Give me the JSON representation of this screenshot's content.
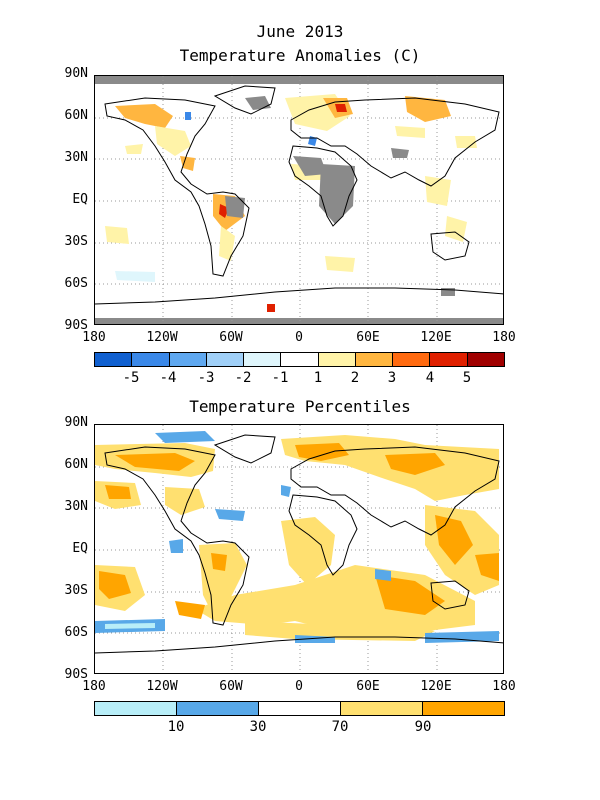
{
  "title": "June 2013",
  "panels": [
    {
      "title": "Temperature Anomalies (C)",
      "lat_labels": [
        "90N",
        "60N",
        "30N",
        "EQ",
        "30S",
        "60S",
        "90S"
      ],
      "lon_labels": [
        "180",
        "120W",
        "60W",
        "0",
        "60E",
        "120E",
        "180"
      ],
      "colorbar": {
        "colors": [
          "#1060d0",
          "#3a88e8",
          "#5fa8f0",
          "#a0d0f8",
          "#dff6fc",
          "#ffffff",
          "#fff3a8",
          "#ffb640",
          "#ff6a10",
          "#e02000",
          "#a00000"
        ],
        "labels": [
          "-5",
          "-4",
          "-3",
          "-2",
          "-1",
          "1",
          "2",
          "3",
          "4",
          "5"
        ]
      }
    },
    {
      "title": "Temperature Percentiles",
      "lat_labels": [
        "90N",
        "60N",
        "30N",
        "EQ",
        "30S",
        "60S",
        "90S"
      ],
      "lon_labels": [
        "180",
        "120W",
        "60W",
        "0",
        "60E",
        "120E",
        "180"
      ],
      "colorbar": {
        "colors": [
          "#b8eef8",
          "#58a8e8",
          "#ffffff",
          "#ffe070",
          "#ffa500"
        ],
        "labels": [
          "10",
          "30",
          "70",
          "90"
        ]
      }
    }
  ]
}
